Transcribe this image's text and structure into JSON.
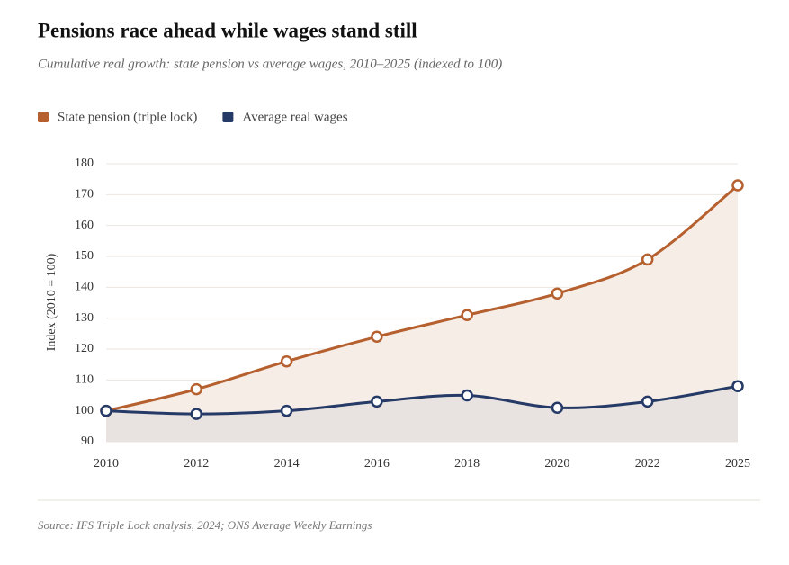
{
  "chart_data": {
    "type": "line",
    "title": "Pensions race ahead while wages stand still",
    "subtitle": "Cumulative real growth: state pension vs average wages, 2010–2025 (indexed to 100)",
    "source": "Source: IFS Triple Lock analysis, 2024; ONS Average Weekly Earnings",
    "y_label": "Index (2010 = 100)",
    "categories": [
      "2010",
      "2012",
      "2014",
      "2016",
      "2018",
      "2020",
      "2022",
      "2025"
    ],
    "series": [
      {
        "name": "State pension (triple lock)",
        "color": "#b5602e",
        "area_color": "#f7ede7",
        "values": [
          100,
          107,
          116,
          124,
          131,
          138,
          149,
          173
        ]
      },
      {
        "name": "Average real wages",
        "color": "#253a66",
        "area_color": "#e8e2e0",
        "values": [
          100,
          99,
          100,
          103,
          105,
          101,
          103,
          108
        ]
      }
    ],
    "ylim": [
      90,
      180
    ],
    "yticks": [
      90,
      100,
      110,
      120,
      130,
      140,
      150,
      160,
      170,
      180
    ],
    "grid": true
  }
}
